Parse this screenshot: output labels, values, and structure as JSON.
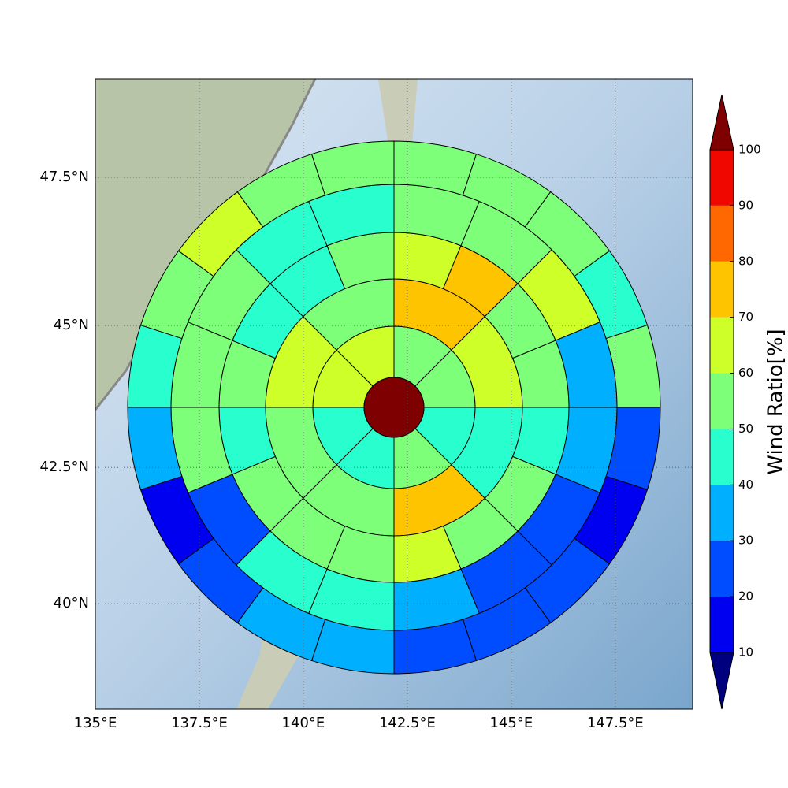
{
  "chart_data": {
    "type": "polar-sector-map",
    "xlim": [
      135,
      149.36
    ],
    "xticks": [
      {
        "value": 135,
        "label": "135°E"
      },
      {
        "value": 137.5,
        "label": "137.5°E"
      },
      {
        "value": 140,
        "label": "140°E"
      },
      {
        "value": 142.5,
        "label": "142.5°E"
      },
      {
        "value": 145,
        "label": "145°E"
      },
      {
        "value": 147.5,
        "label": "147.5°E"
      }
    ],
    "ylim": [
      38,
      49.1
    ],
    "yticks": [
      {
        "value": 40,
        "label": "40°N"
      },
      {
        "value": 42.5,
        "label": "42.5°N"
      },
      {
        "value": 45,
        "label": "45°N"
      },
      {
        "value": 47.5,
        "label": "47.5°N"
      }
    ],
    "grid": true,
    "center": {
      "value": 105
    },
    "rings": [
      {
        "values": [
          55,
          55,
          45,
          55,
          45,
          45,
          65,
          65
        ]
      },
      {
        "values": [
          75,
          65,
          45,
          75,
          55,
          55,
          65,
          55
        ]
      },
      {
        "values": [
          65,
          75,
          55,
          55,
          45,
          55,
          55,
          65,
          55,
          55,
          55,
          45,
          55,
          45,
          45,
          55
        ]
      },
      {
        "values": [
          55,
          55,
          65,
          35,
          35,
          25,
          25,
          35,
          45,
          45,
          25,
          55,
          55,
          55,
          45,
          45
        ]
      },
      {
        "values": [
          55,
          55,
          55,
          45,
          55,
          25,
          15,
          25,
          25,
          25,
          35,
          35,
          25,
          15,
          35,
          45,
          55,
          65,
          55,
          55
        ]
      }
    ],
    "colorbar": {
      "label": "Wind Ratio[%]",
      "ticks": [
        10,
        20,
        30,
        40,
        50,
        60,
        70,
        80,
        90,
        100
      ],
      "colors": [
        "#00007f",
        "#0000f0",
        "#004cff",
        "#00b0ff",
        "#29ffce",
        "#7dff7a",
        "#ceff29",
        "#ffc400",
        "#ff6800",
        "#f00800",
        "#7f0000"
      ]
    }
  }
}
